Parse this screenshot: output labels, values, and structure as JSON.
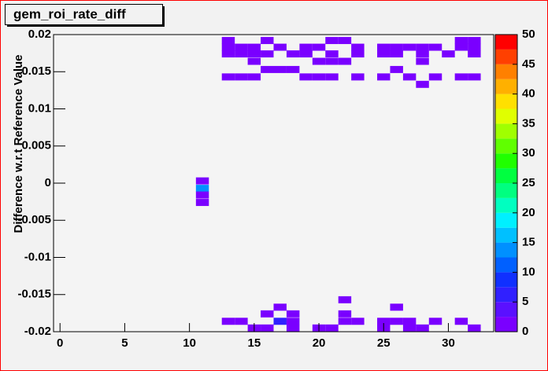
{
  "chart_data": {
    "type": "heatmap",
    "title": "gem_roi_rate_diff",
    "y_label": "Difference w.r.t Reference Value",
    "xlim": [
      -0.5,
      33.5
    ],
    "xticks": [
      0,
      5,
      10,
      15,
      20,
      25,
      30
    ],
    "ylim": [
      -0.02,
      0.02
    ],
    "yticks": [
      0.02,
      0.015,
      0.01,
      0.005,
      0,
      -0.005,
      -0.01,
      -0.015,
      -0.02
    ],
    "zlim": [
      0,
      50
    ],
    "zticks": [
      0,
      5,
      10,
      15,
      20,
      25,
      30,
      35,
      40,
      45,
      50
    ],
    "x_bin_width": 1,
    "y_bin_width": 0.00095,
    "palette": [
      "#7a00ff",
      "#5a10ff",
      "#3020ff",
      "#1030ff",
      "#0060ff",
      "#0090ff",
      "#00c0ff",
      "#00f0ff",
      "#00ffc0",
      "#00ff80",
      "#00ff40",
      "#20ff00",
      "#60ff00",
      "#a0ff00",
      "#e0ff00",
      "#ffe000",
      "#ffb000",
      "#ff8000",
      "#ff4000",
      "#ff0000"
    ],
    "x": [
      13,
      16,
      21,
      22,
      31,
      32,
      13,
      14,
      15,
      17,
      19,
      20,
      23,
      25,
      26,
      27,
      28,
      29,
      31,
      32,
      13,
      14,
      15,
      16,
      18,
      19,
      21,
      23,
      25,
      26,
      28,
      30,
      32,
      15,
      20,
      21,
      22,
      28,
      16,
      17,
      18,
      26,
      13,
      14,
      15,
      19,
      20,
      21,
      23,
      25,
      27,
      29,
      31,
      32,
      28,
      11,
      11,
      11,
      11,
      22,
      17,
      26,
      16,
      18,
      22,
      13,
      14,
      17,
      18,
      22,
      23,
      25,
      26,
      27,
      29,
      31,
      15,
      16,
      18,
      20,
      21,
      25,
      27,
      28,
      32
    ],
    "y": [
      0.0192,
      0.0192,
      0.0192,
      0.0192,
      0.0192,
      0.0192,
      0.0183,
      0.0183,
      0.0183,
      0.0183,
      0.0183,
      0.0183,
      0.0183,
      0.0183,
      0.0183,
      0.0183,
      0.0183,
      0.0183,
      0.0183,
      0.0183,
      0.0174,
      0.0174,
      0.0174,
      0.0174,
      0.0174,
      0.0174,
      0.0174,
      0.0174,
      0.0174,
      0.0174,
      0.0174,
      0.0174,
      0.0174,
      0.0164,
      0.0164,
      0.0164,
      0.0164,
      0.0164,
      0.0153,
      0.0153,
      0.0153,
      0.0153,
      0.0143,
      0.0143,
      0.0143,
      0.0143,
      0.0143,
      0.0143,
      0.0143,
      0.0143,
      0.0143,
      0.0143,
      0.0143,
      0.0143,
      0.0133,
      0.0003,
      -0.0007,
      -0.0016,
      -0.0026,
      -0.0157,
      -0.0167,
      -0.0167,
      -0.0176,
      -0.0176,
      -0.0176,
      -0.0186,
      -0.0186,
      -0.0186,
      -0.0186,
      -0.0186,
      -0.0186,
      -0.0186,
      -0.0186,
      -0.0186,
      -0.0186,
      -0.0186,
      -0.0195,
      -0.0195,
      -0.0195,
      -0.0195,
      -0.0195,
      -0.0195,
      -0.0195,
      -0.0195,
      -0.0195
    ],
    "values": [
      1,
      1,
      1,
      1,
      1,
      1,
      1,
      1,
      1,
      1,
      1,
      1,
      1,
      1,
      1,
      1,
      1,
      1,
      1,
      1,
      1,
      1,
      1,
      1,
      1,
      1,
      1,
      1,
      1,
      1,
      1,
      1,
      1,
      1,
      1,
      1,
      1,
      1,
      1,
      1,
      1,
      1,
      1,
      1,
      1,
      1,
      1,
      1,
      1,
      1,
      1,
      1,
      1,
      1,
      1,
      1,
      13,
      1,
      1,
      1,
      1,
      1,
      1,
      1,
      1,
      1,
      1,
      6,
      1,
      1,
      1,
      1,
      1,
      1,
      1,
      1,
      1,
      1,
      1,
      1,
      1,
      1,
      1,
      1,
      1
    ]
  }
}
